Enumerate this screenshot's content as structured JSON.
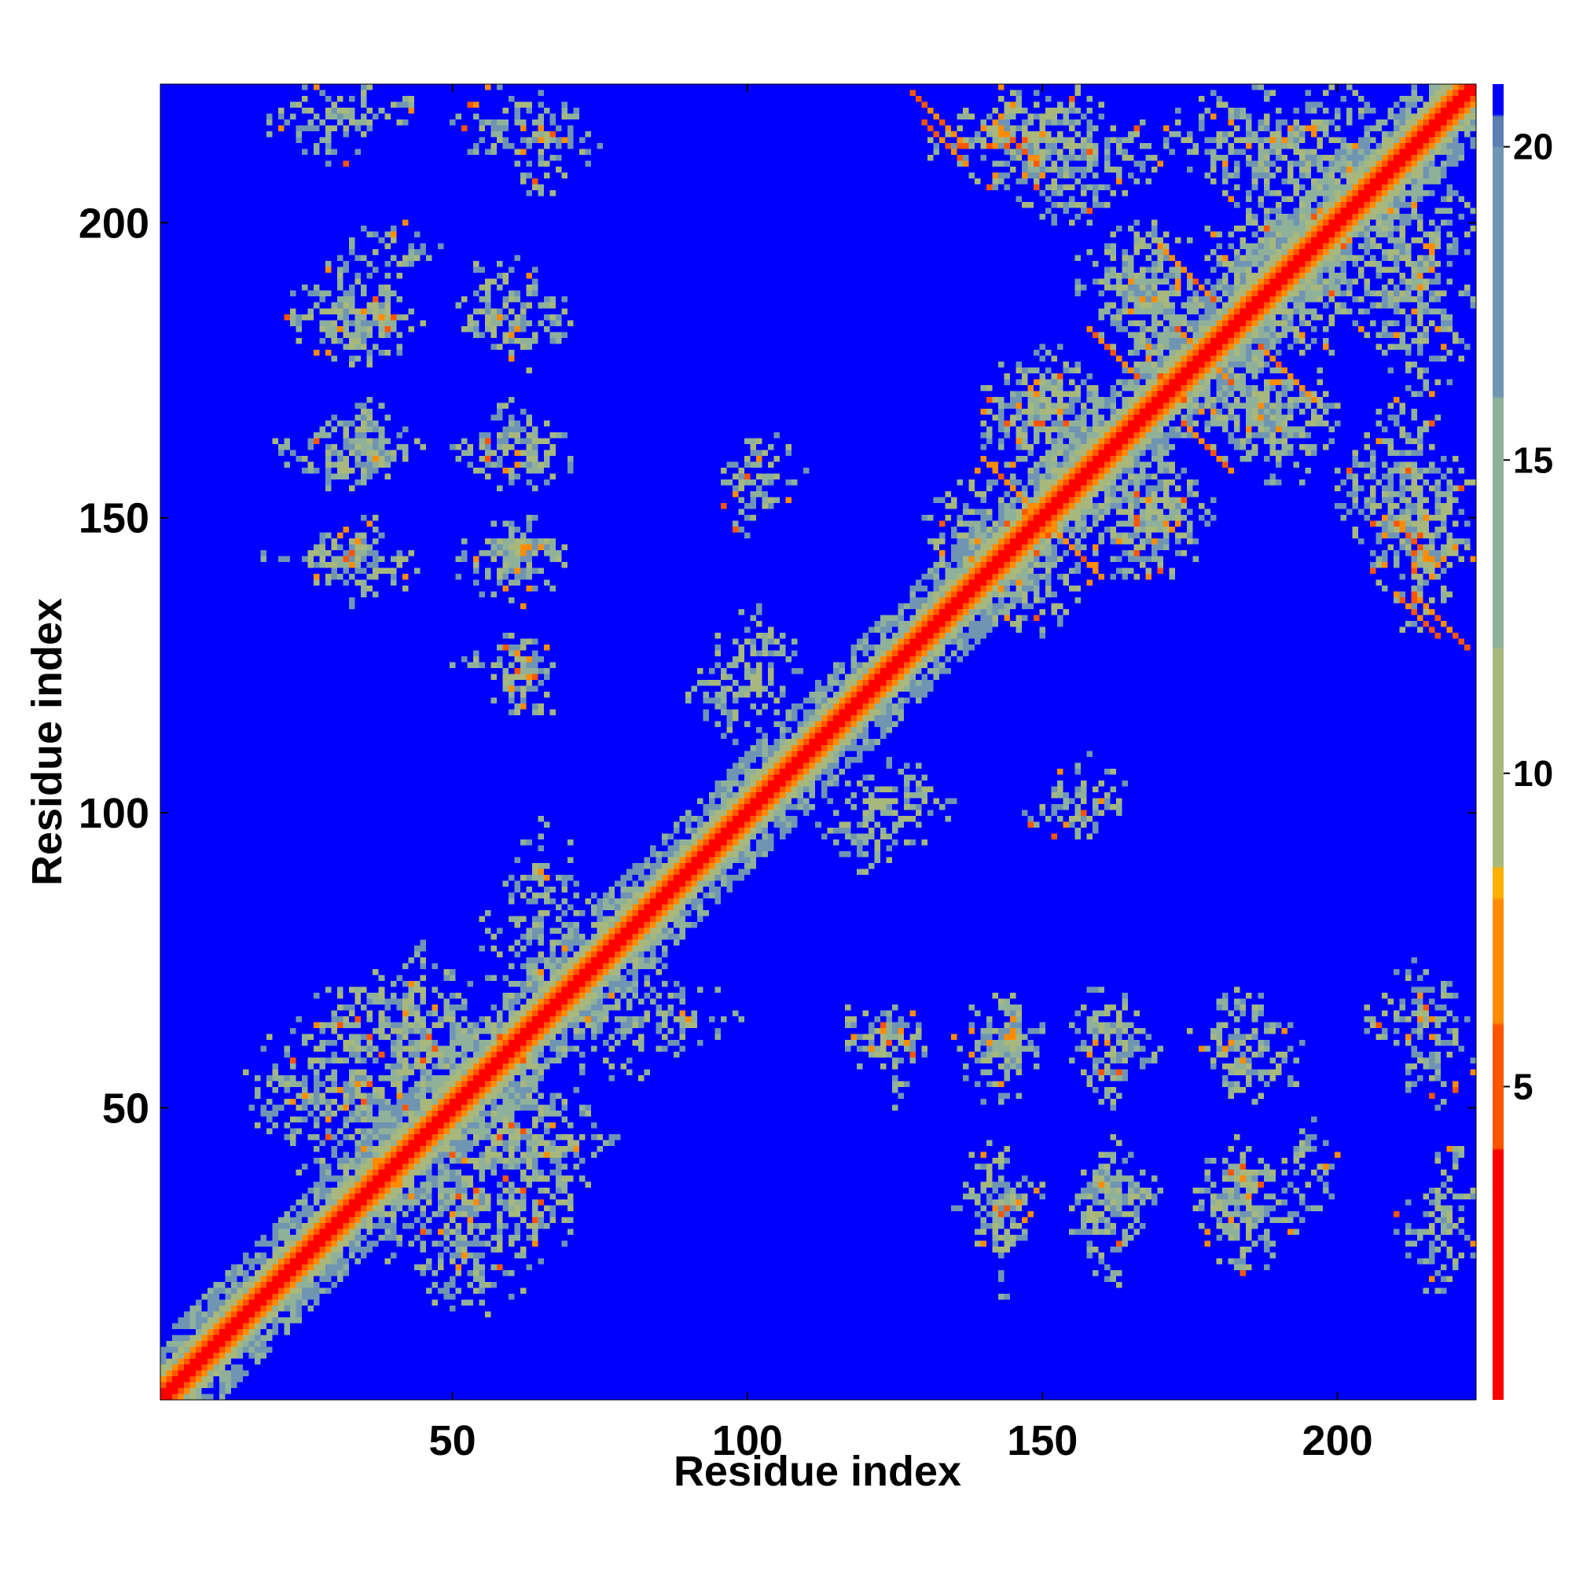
{
  "chart_data": {
    "type": "heatmap",
    "title": "",
    "xlabel": "Residue index",
    "ylabel": "Residue index",
    "xlim": [
      1,
      223
    ],
    "ylim": [
      1,
      223
    ],
    "x_ticks": [
      50,
      100,
      150,
      200
    ],
    "x_tick_labels": [
      "50",
      "100",
      "150",
      "200"
    ],
    "y_ticks": [
      50,
      100,
      150,
      200
    ],
    "y_tick_labels": [
      "50",
      "100",
      "150",
      "200"
    ],
    "colorbar": {
      "range": [
        0,
        21
      ],
      "ticks": [
        5,
        10,
        15,
        20
      ],
      "tick_labels": [
        "5",
        "10",
        "15",
        "20"
      ],
      "colors": [
        {
          "value": 0,
          "color": "#ff0000"
        },
        {
          "value": 4,
          "color": "#ff5500"
        },
        {
          "value": 6,
          "color": "#ff8c00"
        },
        {
          "value": 8,
          "color": "#ffb000"
        },
        {
          "value": 8.5,
          "color": "#a8b87c"
        },
        {
          "value": 12,
          "color": "#8fb19a"
        },
        {
          "value": 16,
          "color": "#6f95b3"
        },
        {
          "value": 20,
          "color": "#5a7fb0"
        },
        {
          "value": 20.5,
          "color": "#0000ff"
        }
      ],
      "background_color": "#0000ff"
    },
    "contact_clusters": [
      {
        "x": [
          1,
          223
        ],
        "y": [
          1,
          223
        ],
        "pattern": "diagonal band",
        "value": "0-8"
      },
      {
        "x": [
          15,
          80
        ],
        "y": [
          30,
          75
        ],
        "value": "8-20"
      },
      {
        "x": [
          55,
          75
        ],
        "y": [
          95,
          225
        ],
        "value": "8-20"
      },
      {
        "x": [
          20,
          45
        ],
        "y": [
          140,
          200
        ],
        "value": "8-20"
      },
      {
        "x": [
          130,
          223
        ],
        "y": [
          130,
          223
        ],
        "value": "0-20"
      },
      {
        "x": [
          115,
          210
        ],
        "y": [
          30,
          70
        ],
        "value": "8-20"
      },
      {
        "x": [
          140,
          170
        ],
        "y": [
          95,
          105
        ],
        "value": "8-20"
      }
    ]
  }
}
